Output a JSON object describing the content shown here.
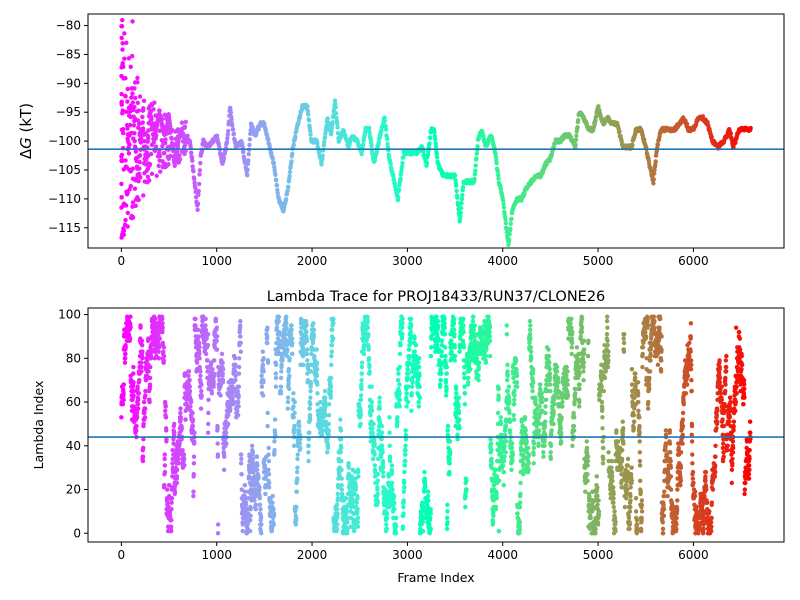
{
  "chart_data": [
    {
      "type": "scatter",
      "title": "",
      "xlabel": "",
      "ylabel": "ΔG (kT)",
      "ylabel_parts": [
        "Δ",
        "G",
        " (kT)"
      ],
      "xlim": [
        -350,
        6950
      ],
      "ylim": [
        -118.5,
        -78
      ],
      "xticks": [
        0,
        1000,
        2000,
        3000,
        4000,
        5000,
        6000
      ],
      "xtick_labels": [
        "0",
        "1000",
        "2000",
        "3000",
        "4000",
        "5000",
        "6000"
      ],
      "yticks": [
        -115,
        -110,
        -105,
        -100,
        -95,
        -90,
        -85,
        -80
      ],
      "ytick_labels": [
        "−115",
        "−110",
        "−105",
        "−100",
        "−95",
        "−90",
        "−85",
        "−80"
      ],
      "hline": -101.4,
      "hline_color": "#1f77b4",
      "colormap": "rainbow",
      "grid": false,
      "x_range": [
        0,
        6600
      ],
      "trace": [
        [
          0,
          -86
        ],
        [
          20,
          -116.8
        ],
        [
          40,
          -80
        ],
        [
          60,
          -97
        ],
        [
          80,
          -102
        ],
        [
          110,
          -90
        ],
        [
          140,
          -100
        ],
        [
          180,
          -107
        ],
        [
          220,
          -96
        ],
        [
          260,
          -104
        ],
        [
          300,
          -94
        ],
        [
          340,
          -100
        ],
        [
          400,
          -95
        ],
        [
          450,
          -99
        ],
        [
          500,
          -96
        ],
        [
          560,
          -104
        ],
        [
          620,
          -98
        ],
        [
          680,
          -100
        ],
        [
          720,
          -100
        ],
        [
          760,
          -106
        ],
        [
          800,
          -112
        ],
        [
          830,
          -103
        ],
        [
          860,
          -100
        ],
        [
          900,
          -101
        ],
        [
          960,
          -100
        ],
        [
          1000,
          -99
        ],
        [
          1060,
          -104
        ],
        [
          1110,
          -100
        ],
        [
          1140,
          -94
        ],
        [
          1170,
          -98
        ],
        [
          1200,
          -101
        ],
        [
          1260,
          -100
        ],
        [
          1320,
          -106
        ],
        [
          1360,
          -97
        ],
        [
          1400,
          -99
        ],
        [
          1460,
          -97
        ],
        [
          1500,
          -97
        ],
        [
          1540,
          -100
        ],
        [
          1600,
          -104
        ],
        [
          1650,
          -110
        ],
        [
          1700,
          -112
        ],
        [
          1750,
          -108
        ],
        [
          1800,
          -101
        ],
        [
          1850,
          -97
        ],
        [
          1900,
          -94
        ],
        [
          1950,
          -94
        ],
        [
          1990,
          -100
        ],
        [
          2050,
          -100
        ],
        [
          2100,
          -104
        ],
        [
          2160,
          -96
        ],
        [
          2200,
          -99
        ],
        [
          2240,
          -93
        ],
        [
          2280,
          -100
        ],
        [
          2330,
          -98
        ],
        [
          2380,
          -101
        ],
        [
          2420,
          -99
        ],
        [
          2470,
          -100
        ],
        [
          2520,
          -102
        ],
        [
          2560,
          -98
        ],
        [
          2600,
          -98
        ],
        [
          2650,
          -104
        ],
        [
          2700,
          -100
        ],
        [
          2760,
          -96
        ],
        [
          2810,
          -103
        ],
        [
          2850,
          -106
        ],
        [
          2900,
          -110
        ],
        [
          2960,
          -102
        ],
        [
          3000,
          -102
        ],
        [
          3050,
          -102
        ],
        [
          3100,
          -102
        ],
        [
          3150,
          -101
        ],
        [
          3200,
          -104
        ],
        [
          3250,
          -98
        ],
        [
          3280,
          -98
        ],
        [
          3320,
          -104
        ],
        [
          3380,
          -106
        ],
        [
          3450,
          -106
        ],
        [
          3500,
          -106
        ],
        [
          3550,
          -114
        ],
        [
          3590,
          -107
        ],
        [
          3650,
          -107
        ],
        [
          3700,
          -107
        ],
        [
          3740,
          -100
        ],
        [
          3780,
          -98
        ],
        [
          3820,
          -101
        ],
        [
          3880,
          -99
        ],
        [
          3920,
          -102
        ],
        [
          3960,
          -107
        ],
        [
          4000,
          -110
        ],
        [
          4030,
          -114
        ],
        [
          4060,
          -118
        ],
        [
          4100,
          -112
        ],
        [
          4150,
          -110
        ],
        [
          4200,
          -110
        ],
        [
          4250,
          -108
        ],
        [
          4300,
          -107
        ],
        [
          4350,
          -106
        ],
        [
          4400,
          -106
        ],
        [
          4450,
          -104
        ],
        [
          4500,
          -103
        ],
        [
          4550,
          -100
        ],
        [
          4600,
          -100
        ],
        [
          4650,
          -99
        ],
        [
          4700,
          -99
        ],
        [
          4760,
          -101
        ],
        [
          4800,
          -95
        ],
        [
          4850,
          -96
        ],
        [
          4900,
          -98
        ],
        [
          4950,
          -98
        ],
        [
          5000,
          -94
        ],
        [
          5050,
          -97
        ],
        [
          5100,
          -96
        ],
        [
          5150,
          -97
        ],
        [
          5200,
          -97
        ],
        [
          5260,
          -101
        ],
        [
          5300,
          -101
        ],
        [
          5350,
          -101
        ],
        [
          5400,
          -98
        ],
        [
          5450,
          -98
        ],
        [
          5500,
          -101
        ],
        [
          5550,
          -105
        ],
        [
          5580,
          -107
        ],
        [
          5620,
          -101
        ],
        [
          5660,
          -98
        ],
        [
          5700,
          -98
        ],
        [
          5760,
          -98
        ],
        [
          5800,
          -98
        ],
        [
          5850,
          -97
        ],
        [
          5900,
          -96
        ],
        [
          5950,
          -98
        ],
        [
          6000,
          -98
        ],
        [
          6050,
          -96
        ],
        [
          6100,
          -96
        ],
        [
          6150,
          -97
        ],
        [
          6200,
          -100
        ],
        [
          6260,
          -101
        ],
        [
          6320,
          -100
        ],
        [
          6380,
          -98
        ],
        [
          6420,
          -101
        ],
        [
          6480,
          -98
        ],
        [
          6550,
          -98
        ],
        [
          6600,
          -98
        ]
      ]
    },
    {
      "type": "scatter",
      "title": "Lambda Trace for PROJ18433/RUN37/CLONE26",
      "xlabel": "Frame Index",
      "ylabel": "Lambda Index",
      "xlim": [
        -350,
        6950
      ],
      "ylim": [
        -4,
        103
      ],
      "xticks": [
        0,
        1000,
        2000,
        3000,
        4000,
        5000,
        6000
      ],
      "xtick_labels": [
        "0",
        "1000",
        "2000",
        "3000",
        "4000",
        "5000",
        "6000"
      ],
      "yticks": [
        0,
        20,
        40,
        60,
        80,
        100
      ],
      "ytick_labels": [
        "0",
        "20",
        "40",
        "60",
        "80",
        "100"
      ],
      "hline": 44,
      "hline_color": "#1f77b4",
      "colormap": "rainbow",
      "grid": false,
      "x_range": [
        0,
        6600
      ],
      "y_range": [
        0,
        99
      ]
    }
  ]
}
